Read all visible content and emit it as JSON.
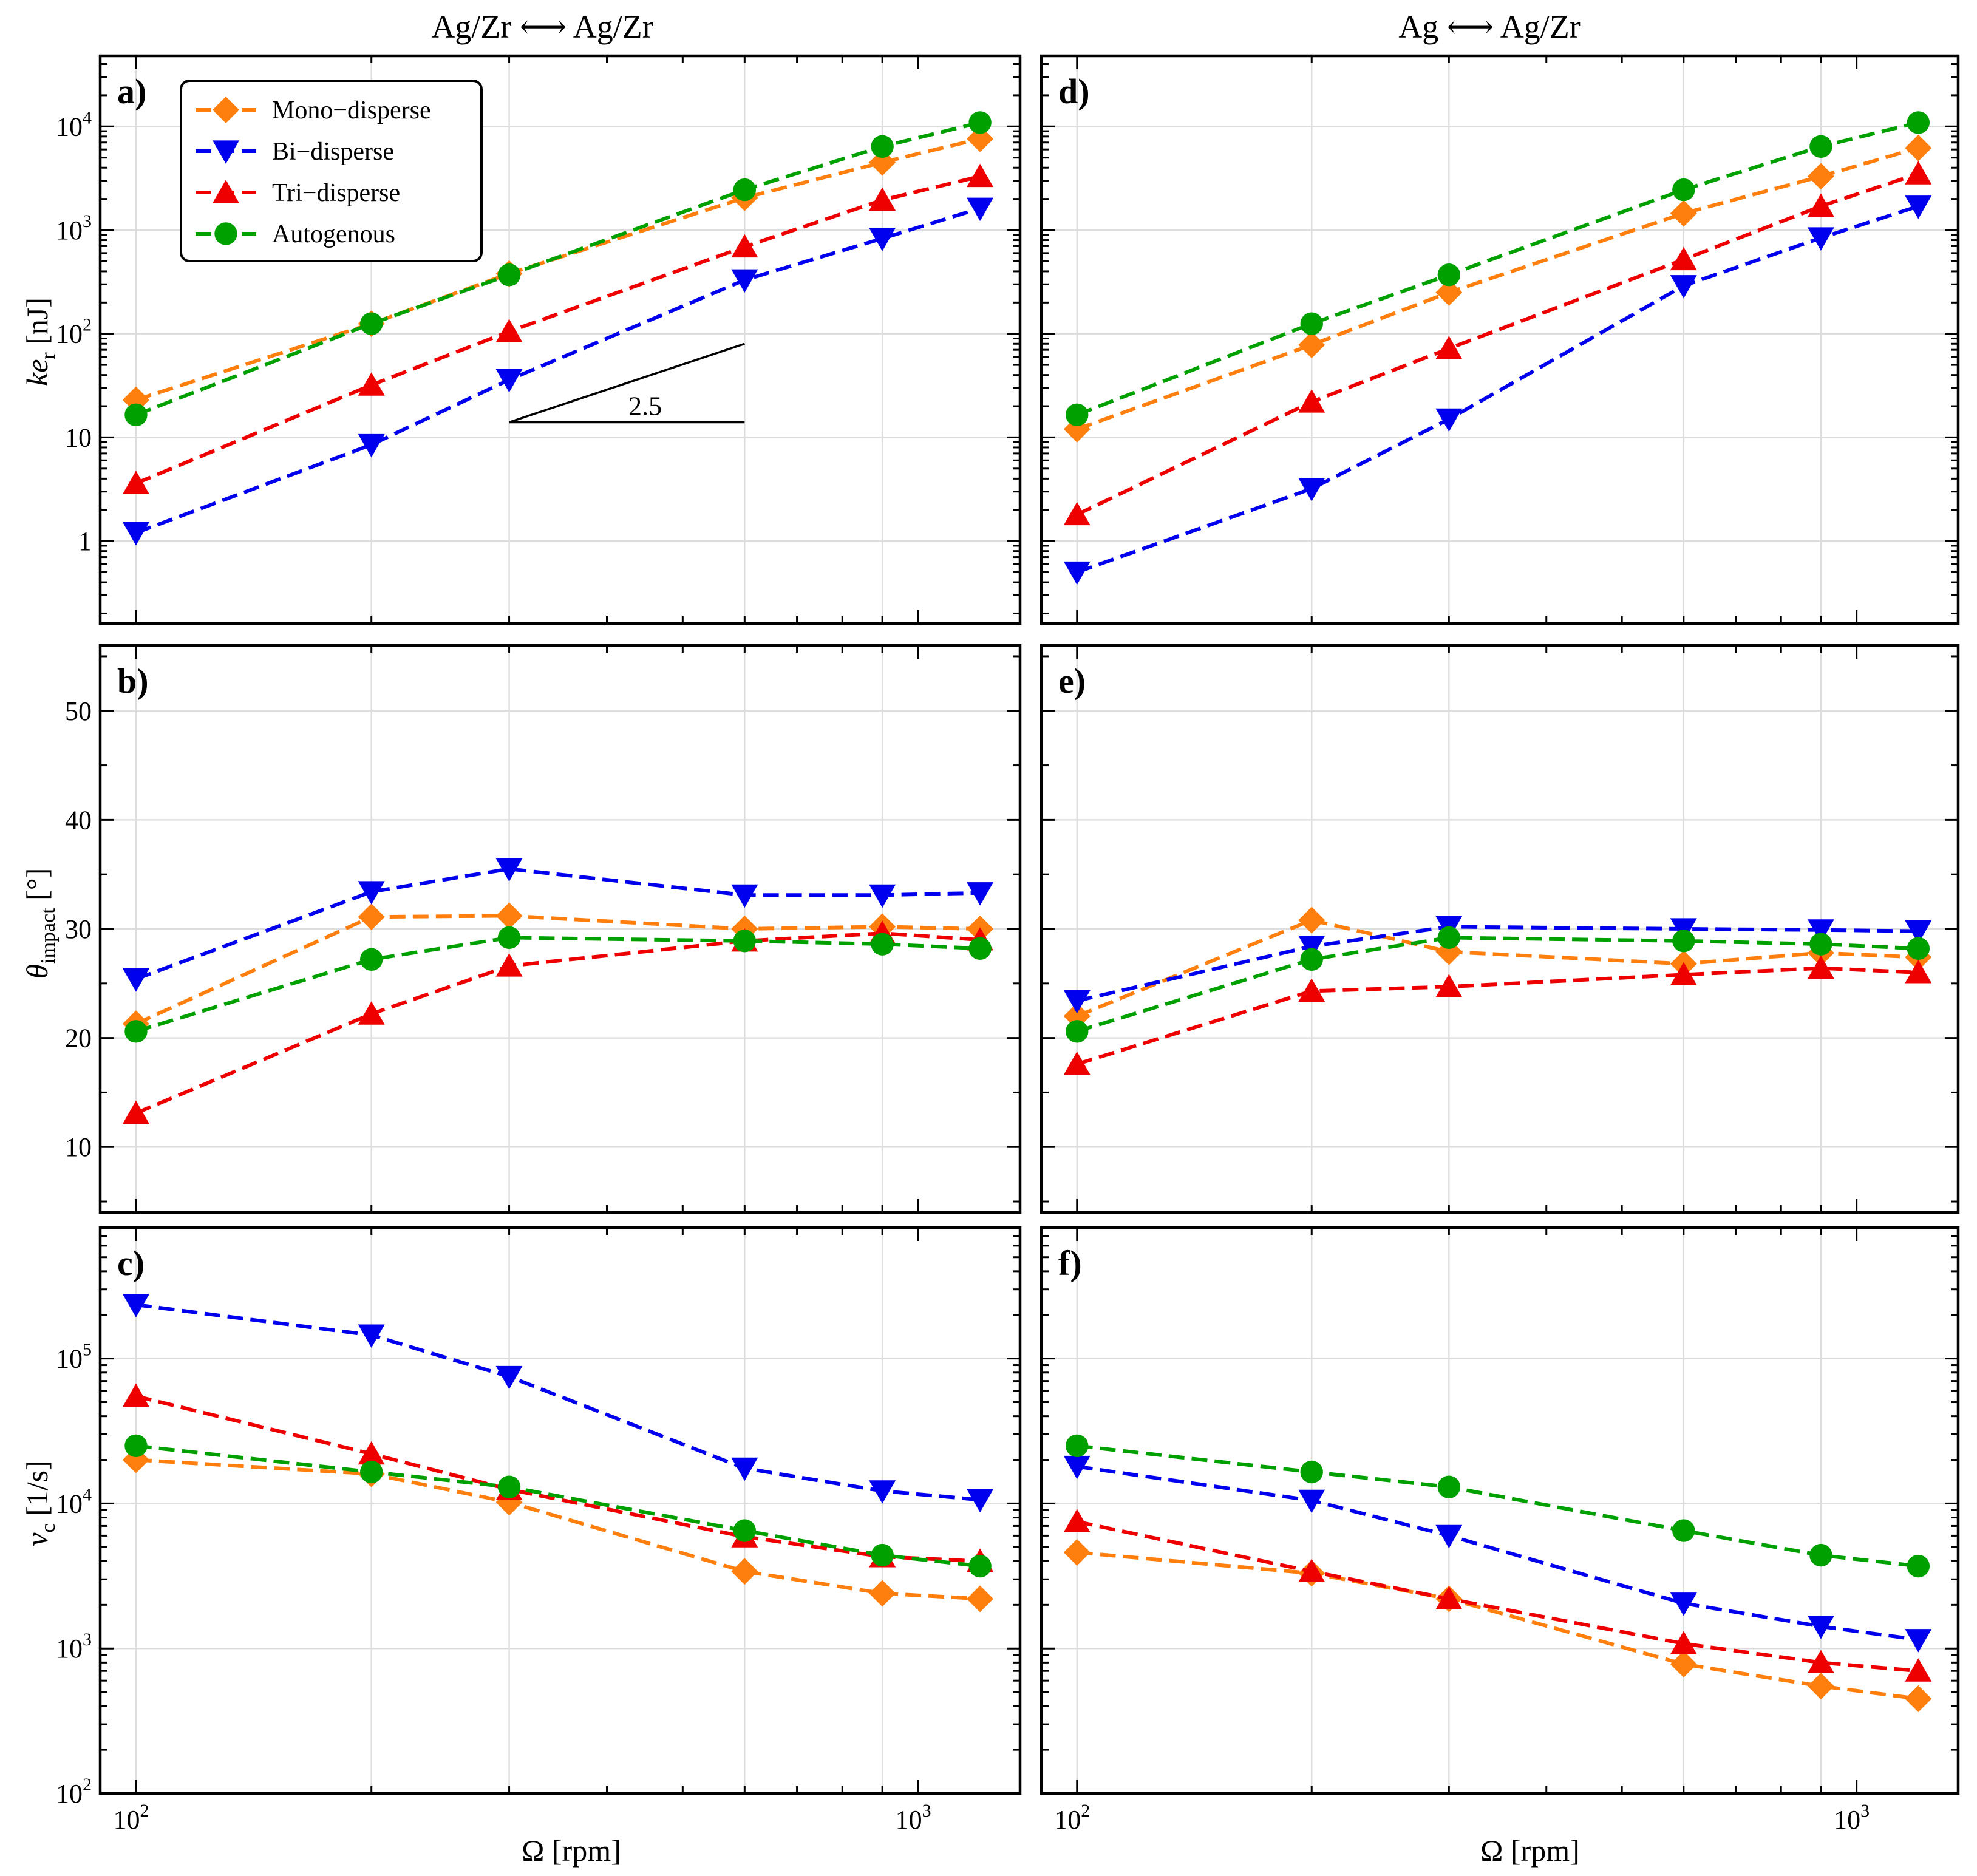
{
  "figure": {
    "column_titles": [
      "Ag/Zr ⟷ Ag/Zr",
      "Ag ⟷ Ag/Zr"
    ],
    "xlabel": "Ω [rpm]",
    "slope_annotation": "2.5"
  },
  "legend": [
    {
      "key": "mono",
      "label": "Mono−disperse",
      "color": "#ff7f0e",
      "marker": "diamond"
    },
    {
      "key": "bi",
      "label": "Bi−disperse",
      "color": "#0000ee",
      "marker": "triangle-down"
    },
    {
      "key": "tri",
      "label": "Tri−disperse",
      "color": "#ee0000",
      "marker": "triangle-up"
    },
    {
      "key": "auto",
      "label": "Autogenous",
      "color": "#00a000",
      "marker": "circle"
    }
  ],
  "chart_data": [
    {
      "panel": "a)",
      "type": "line",
      "row": 0,
      "col": 0,
      "xscale": "log",
      "yscale": "log",
      "xlim": [
        90,
        1350
      ],
      "ylim": [
        0.16,
        48000
      ],
      "ylabel": "ke_r [nJ]",
      "x": [
        100,
        200,
        300,
        600,
        900,
        1200
      ],
      "series": [
        {
          "key": "mono",
          "values": [
            23,
            125,
            380,
            2050,
            4500,
            7600
          ]
        },
        {
          "key": "bi",
          "values": [
            1.2,
            8.5,
            36,
            330,
            830,
            1620
          ]
        },
        {
          "key": "tri",
          "values": [
            3.6,
            32,
            105,
            690,
            1950,
            3300
          ]
        },
        {
          "key": "auto",
          "values": [
            16.5,
            125,
            370,
            2450,
            6400,
            10900
          ]
        }
      ]
    },
    {
      "panel": "d)",
      "type": "line",
      "row": 0,
      "col": 1,
      "xscale": "log",
      "yscale": "log",
      "xlim": [
        90,
        1350
      ],
      "ylim": [
        0.16,
        48000
      ],
      "ylabel": "",
      "x": [
        100,
        200,
        300,
        600,
        900,
        1200
      ],
      "series": [
        {
          "key": "mono",
          "values": [
            12,
            78,
            250,
            1450,
            3300,
            6200
          ]
        },
        {
          "key": "bi",
          "values": [
            0.5,
            3.2,
            15,
            290,
            840,
            1700
          ]
        },
        {
          "key": "tri",
          "values": [
            1.8,
            22,
            72,
            520,
            1700,
            3500
          ]
        },
        {
          "key": "auto",
          "values": [
            16.5,
            125,
            370,
            2450,
            6400,
            10900
          ]
        }
      ]
    },
    {
      "panel": "b)",
      "type": "line",
      "row": 1,
      "col": 0,
      "xscale": "log",
      "yscale": "linear",
      "xlim": [
        90,
        1350
      ],
      "ylim": [
        4,
        56
      ],
      "ylabel": "θ_impact [°]",
      "x": [
        100,
        200,
        300,
        600,
        900,
        1200
      ],
      "series": [
        {
          "key": "mono",
          "values": [
            21.3,
            31.1,
            31.2,
            30.0,
            30.2,
            30.0
          ]
        },
        {
          "key": "bi",
          "values": [
            25.4,
            33.4,
            35.5,
            33.1,
            33.1,
            33.3
          ]
        },
        {
          "key": "tri",
          "values": [
            13.1,
            22.2,
            26.6,
            28.9,
            29.6,
            29.0
          ]
        },
        {
          "key": "auto",
          "values": [
            20.6,
            27.2,
            29.2,
            28.9,
            28.6,
            28.2
          ]
        }
      ]
    },
    {
      "panel": "e)",
      "type": "line",
      "row": 1,
      "col": 1,
      "xscale": "log",
      "yscale": "linear",
      "xlim": [
        90,
        1350
      ],
      "ylim": [
        4,
        56
      ],
      "ylabel": "",
      "x": [
        100,
        200,
        300,
        600,
        900,
        1200
      ],
      "series": [
        {
          "key": "mono",
          "values": [
            22.0,
            30.8,
            27.9,
            26.8,
            27.8,
            27.4
          ]
        },
        {
          "key": "bi",
          "values": [
            23.4,
            28.4,
            30.2,
            30.0,
            29.9,
            29.8
          ]
        },
        {
          "key": "tri",
          "values": [
            17.6,
            24.3,
            24.7,
            25.8,
            26.4,
            26.0
          ]
        },
        {
          "key": "auto",
          "values": [
            20.6,
            27.2,
            29.2,
            28.9,
            28.6,
            28.2
          ]
        }
      ]
    },
    {
      "panel": "c)",
      "type": "line",
      "row": 2,
      "col": 0,
      "xscale": "log",
      "yscale": "log",
      "xlim": [
        90,
        1350
      ],
      "ylim": [
        100,
        800000
      ],
      "ylabel": "ν_c [1/s]",
      "x": [
        100,
        200,
        300,
        600,
        900,
        1200
      ],
      "series": [
        {
          "key": "mono",
          "values": [
            20000,
            16000,
            10200,
            3400,
            2400,
            2200
          ]
        },
        {
          "key": "bi",
          "values": [
            235000,
            145000,
            75000,
            17500,
            12200,
            10600
          ]
        },
        {
          "key": "tri",
          "values": [
            55000,
            22000,
            12500,
            5900,
            4300,
            4000
          ]
        },
        {
          "key": "auto",
          "values": [
            25000,
            16500,
            13000,
            6500,
            4400,
            3700
          ]
        }
      ]
    },
    {
      "panel": "f)",
      "type": "line",
      "row": 2,
      "col": 1,
      "xscale": "log",
      "yscale": "log",
      "xlim": [
        90,
        1350
      ],
      "ylim": [
        100,
        800000
      ],
      "ylabel": "",
      "x": [
        100,
        200,
        300,
        600,
        900,
        1200
      ],
      "series": [
        {
          "key": "mono",
          "values": [
            4600,
            3300,
            2200,
            780,
            550,
            450
          ]
        },
        {
          "key": "bi",
          "values": [
            18000,
            10500,
            6000,
            2050,
            1420,
            1150
          ]
        },
        {
          "key": "tri",
          "values": [
            7500,
            3400,
            2200,
            1080,
            800,
            700
          ]
        },
        {
          "key": "auto",
          "values": [
            25000,
            16500,
            13000,
            6500,
            4400,
            3700
          ]
        }
      ]
    }
  ]
}
